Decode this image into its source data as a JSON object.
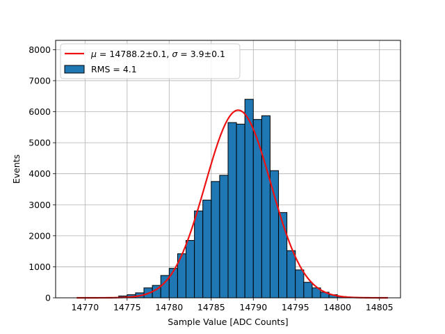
{
  "chart_data": {
    "type": "bar",
    "title": "",
    "xlabel": "Sample Value [ADC Counts]",
    "ylabel": "Events",
    "xlim": [
      14766.5,
      14807.5
    ],
    "ylim": [
      0,
      8300
    ],
    "grid": true,
    "legend_position": "top-left",
    "x_ticks": [
      14770,
      14775,
      14780,
      14785,
      14790,
      14795,
      14800,
      14805
    ],
    "y_ticks": [
      0,
      1000,
      2000,
      3000,
      4000,
      5000,
      6000,
      7000,
      8000
    ],
    "x_tick_labels": [
      "14770",
      "14775",
      "14780",
      "14785",
      "14790",
      "14795",
      "14800",
      "14805"
    ],
    "y_tick_labels": [
      "0",
      "1000",
      "2000",
      "3000",
      "4000",
      "5000",
      "6000",
      "7000",
      "8000"
    ],
    "histogram": {
      "name": "RMS = 4.1",
      "color": "#1f77b4",
      "edge_color": "#000000",
      "bin_width": 1,
      "bin_left_edges": [
        14769,
        14770,
        14771,
        14772,
        14773,
        14774,
        14775,
        14776,
        14777,
        14778,
        14779,
        14780,
        14781,
        14782,
        14783,
        14784,
        14785,
        14786,
        14787,
        14788,
        14789,
        14790,
        14791,
        14792,
        14793,
        14794,
        14795,
        14796,
        14797,
        14798,
        14799,
        14800,
        14801,
        14802,
        14803,
        14804,
        14805
      ],
      "values": [
        0,
        0,
        0,
        0,
        10,
        60,
        100,
        160,
        320,
        400,
        720,
        950,
        1420,
        1850,
        2800,
        3150,
        3750,
        3950,
        5650,
        5600,
        6400,
        5750,
        5870,
        4100,
        2750,
        1520,
        900,
        500,
        320,
        180,
        100,
        40,
        10,
        0,
        0,
        0,
        0
      ]
    },
    "fit": {
      "name_prefix_mu": "μ",
      "name_text_mu": " = 14788.2±0.1, ",
      "name_prefix_sigma": "σ",
      "name_text_sigma": " = 3.9±0.1",
      "color": "#ee1111",
      "type": "gaussian",
      "mu": 14788.2,
      "sigma": 3.9,
      "amplitude": 6050,
      "x_range": [
        14769,
        14806
      ]
    }
  }
}
